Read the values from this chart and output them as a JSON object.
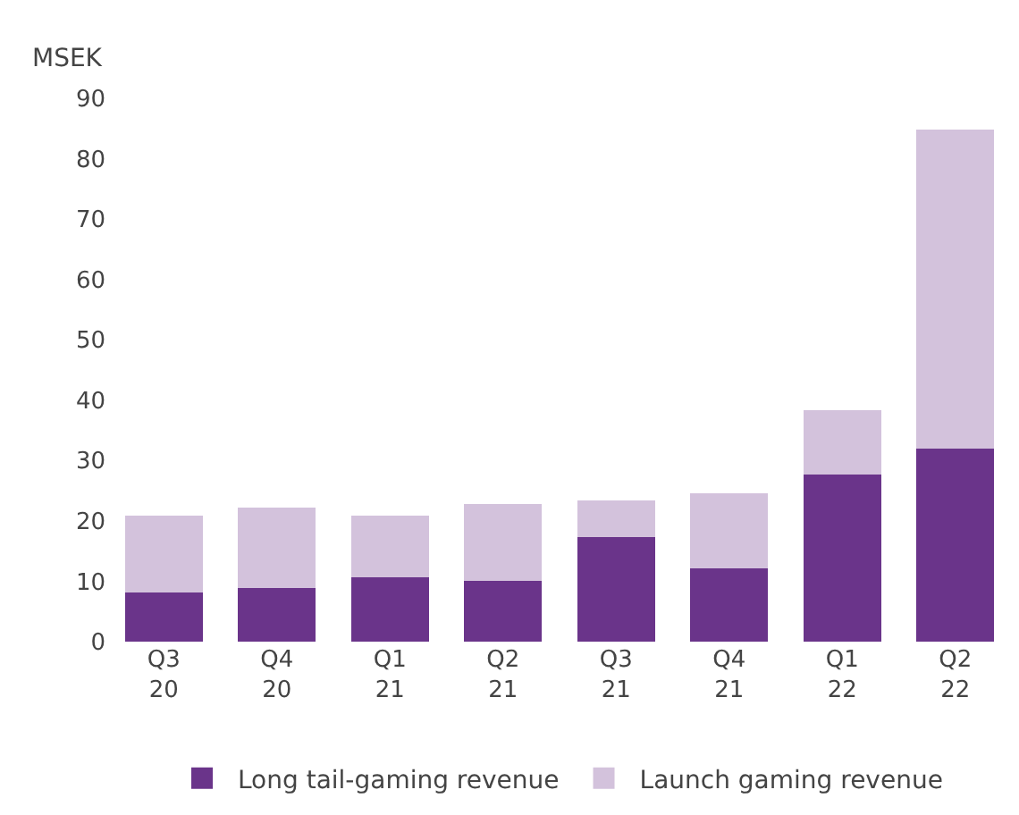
{
  "chart_data": {
    "type": "bar",
    "stacked": true,
    "ylabel": "MSEK",
    "categories": [
      "Q3\n20",
      "Q4\n20",
      "Q1\n21",
      "Q2\n21",
      "Q3\n21",
      "Q4\n21",
      "Q1\n22",
      "Q2\n22"
    ],
    "series": [
      {
        "name": "Long tail-gaming revenue",
        "color": "#6a348a",
        "values": [
          8.1,
          8.9,
          10.7,
          10.1,
          17.3,
          12.1,
          27.7,
          32.0
        ]
      },
      {
        "name": "Launch gaming revenue",
        "color": "#d3c2dc",
        "values": [
          12.7,
          13.3,
          10.1,
          12.7,
          6.1,
          12.4,
          10.7,
          52.8
        ]
      }
    ],
    "ylim": [
      0,
      90
    ],
    "yticks": [
      0,
      10,
      20,
      30,
      40,
      50,
      60,
      70,
      80,
      90
    ],
    "legend": "bottom"
  }
}
